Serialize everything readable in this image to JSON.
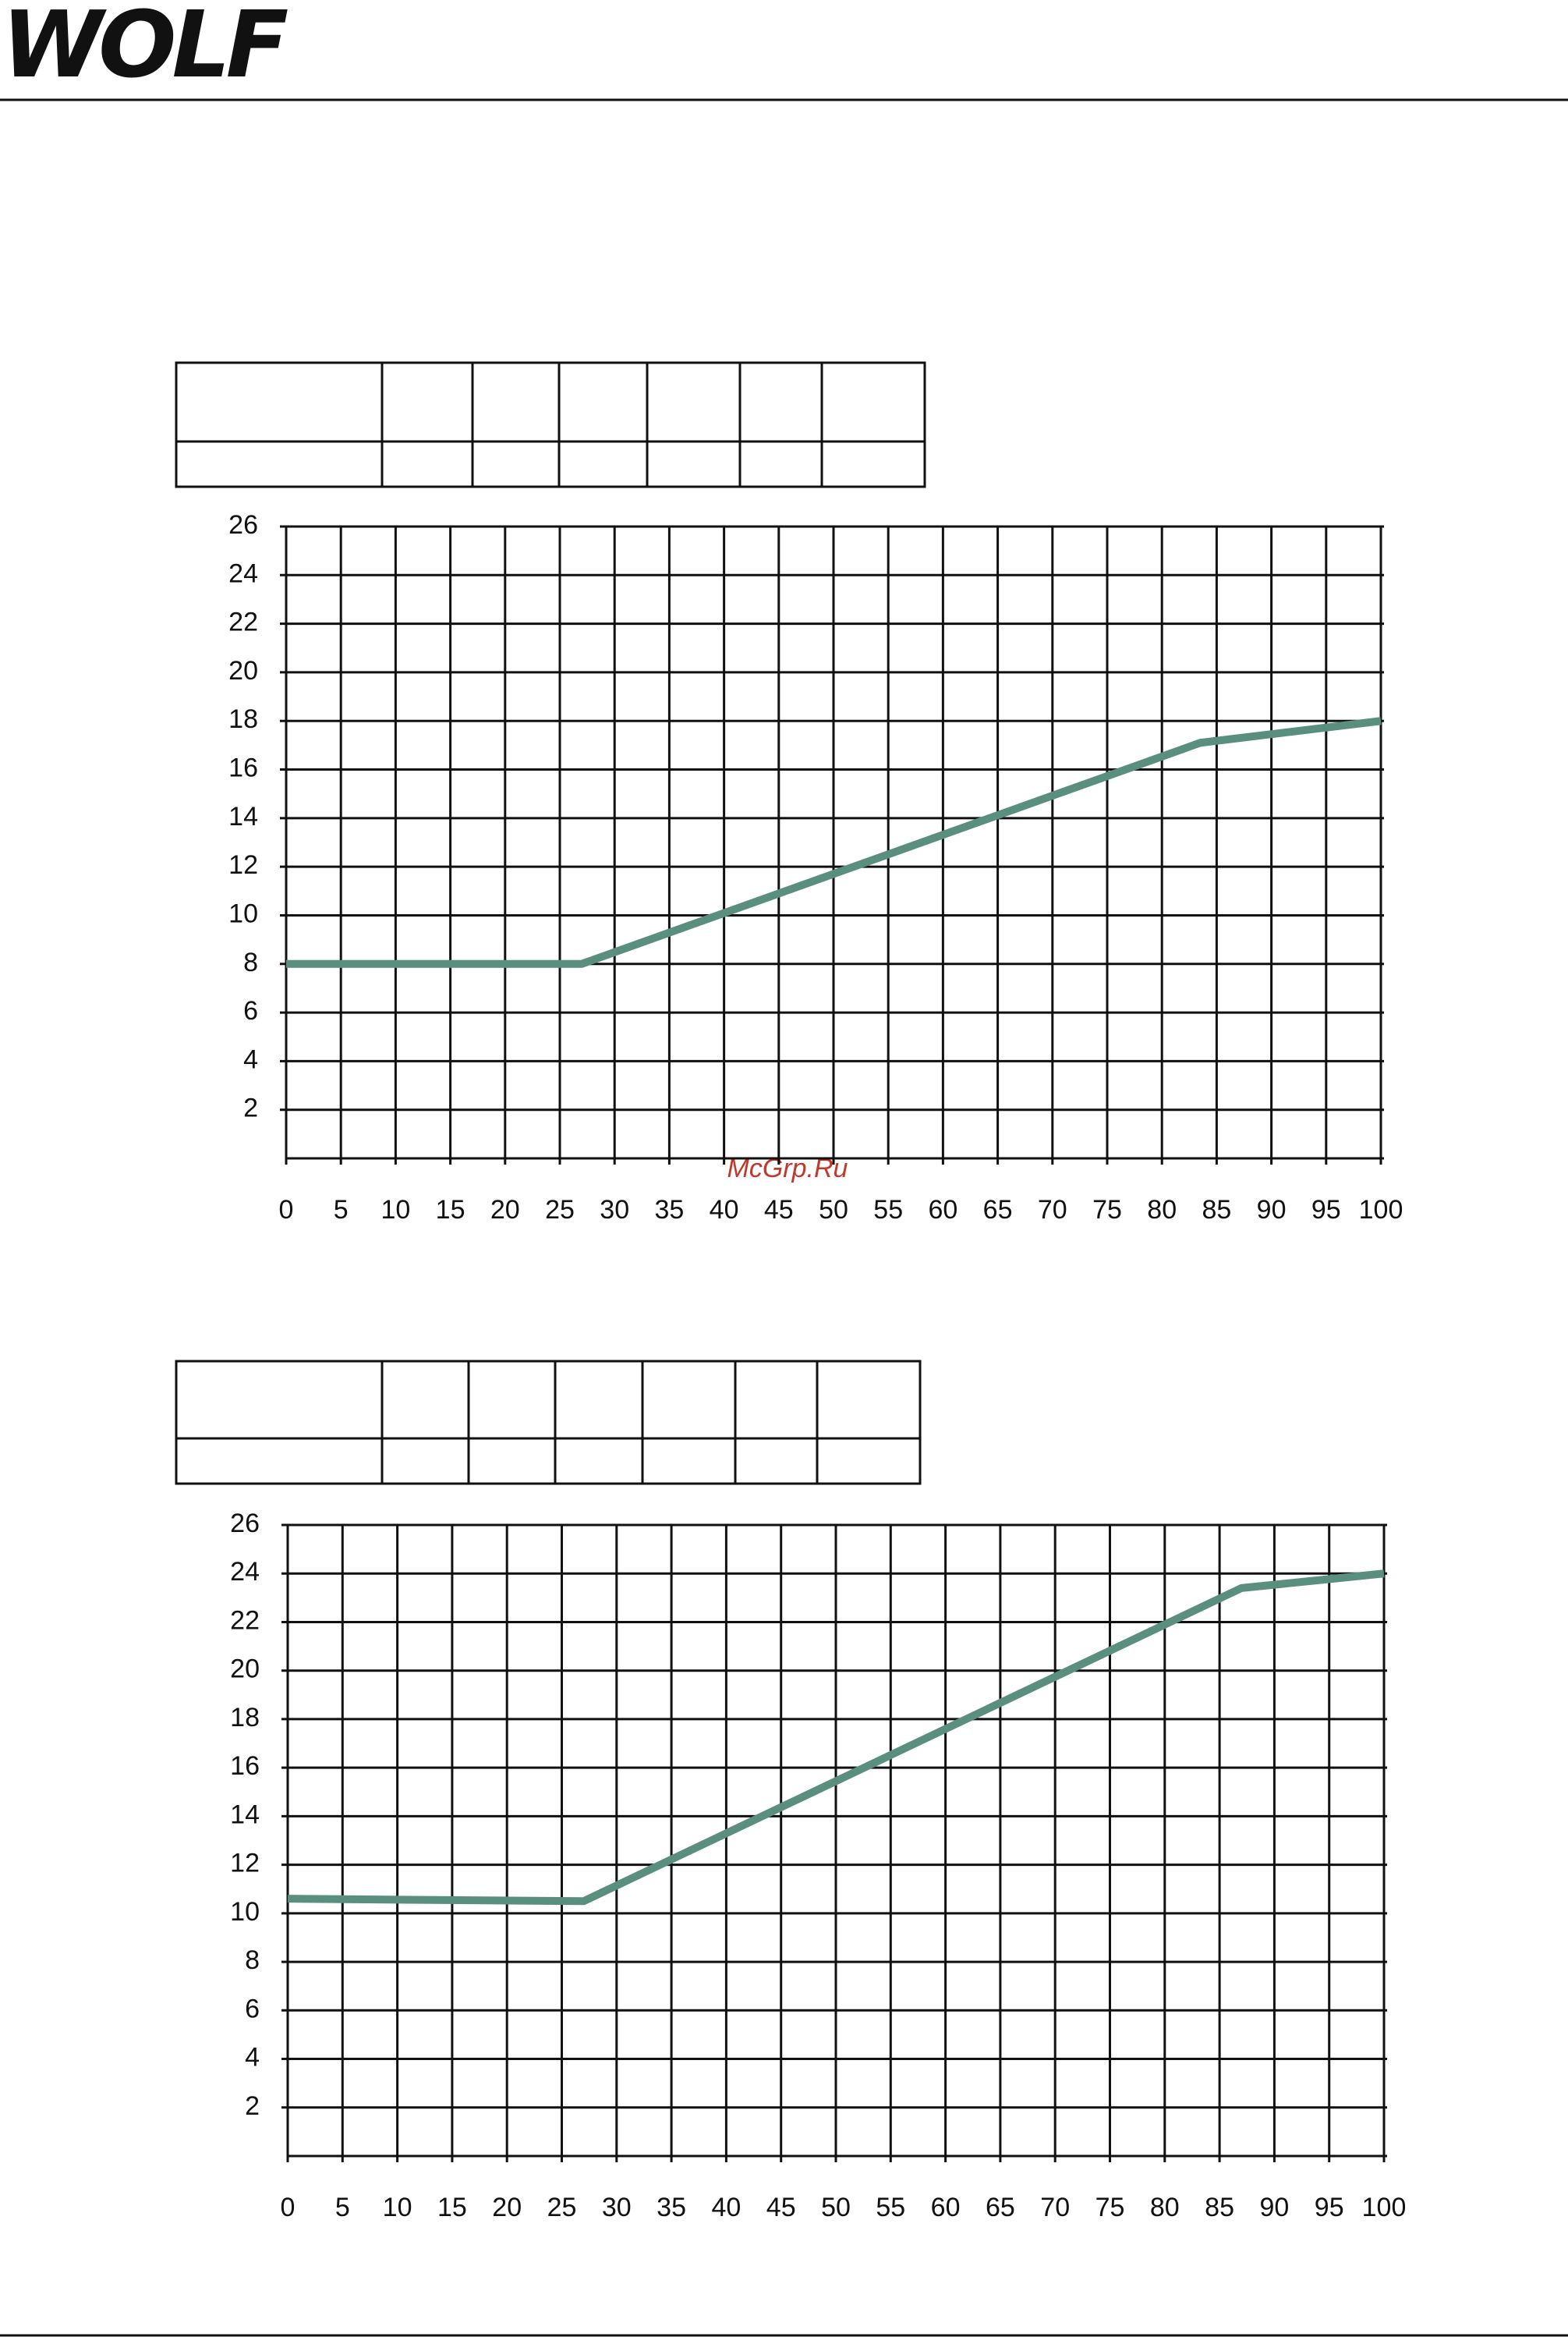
{
  "header": {
    "logo": "WOLF"
  },
  "watermark": "McGrp.Ru",
  "chart_data": [
    {
      "type": "line",
      "x": [
        0,
        27,
        83.5,
        100
      ],
      "series": [
        {
          "color": "#5a8f80",
          "values": [
            8,
            8,
            17.1,
            18
          ]
        }
      ],
      "xlim": [
        0,
        100
      ],
      "xticks": [
        0,
        5,
        10,
        15,
        20,
        25,
        30,
        35,
        40,
        45,
        50,
        55,
        60,
        65,
        70,
        75,
        80,
        85,
        90,
        95,
        100
      ],
      "ylim": [
        0,
        26
      ],
      "yticks": [
        2,
        4,
        6,
        8,
        10,
        12,
        14,
        16,
        18,
        20,
        22,
        24,
        26
      ],
      "grid": true
    },
    {
      "type": "line",
      "x": [
        0,
        27,
        87,
        100
      ],
      "series": [
        {
          "color": "#5a8f80",
          "values": [
            10.6,
            10.5,
            23.4,
            24
          ]
        }
      ],
      "xlim": [
        0,
        100
      ],
      "xticks": [
        0,
        5,
        10,
        15,
        20,
        25,
        30,
        35,
        40,
        45,
        50,
        55,
        60,
        65,
        70,
        75,
        80,
        85,
        90,
        95,
        100
      ],
      "ylim": [
        0,
        26
      ],
      "yticks": [
        2,
        4,
        6,
        8,
        10,
        12,
        14,
        16,
        18,
        20,
        22,
        24,
        26
      ],
      "grid": true
    }
  ]
}
